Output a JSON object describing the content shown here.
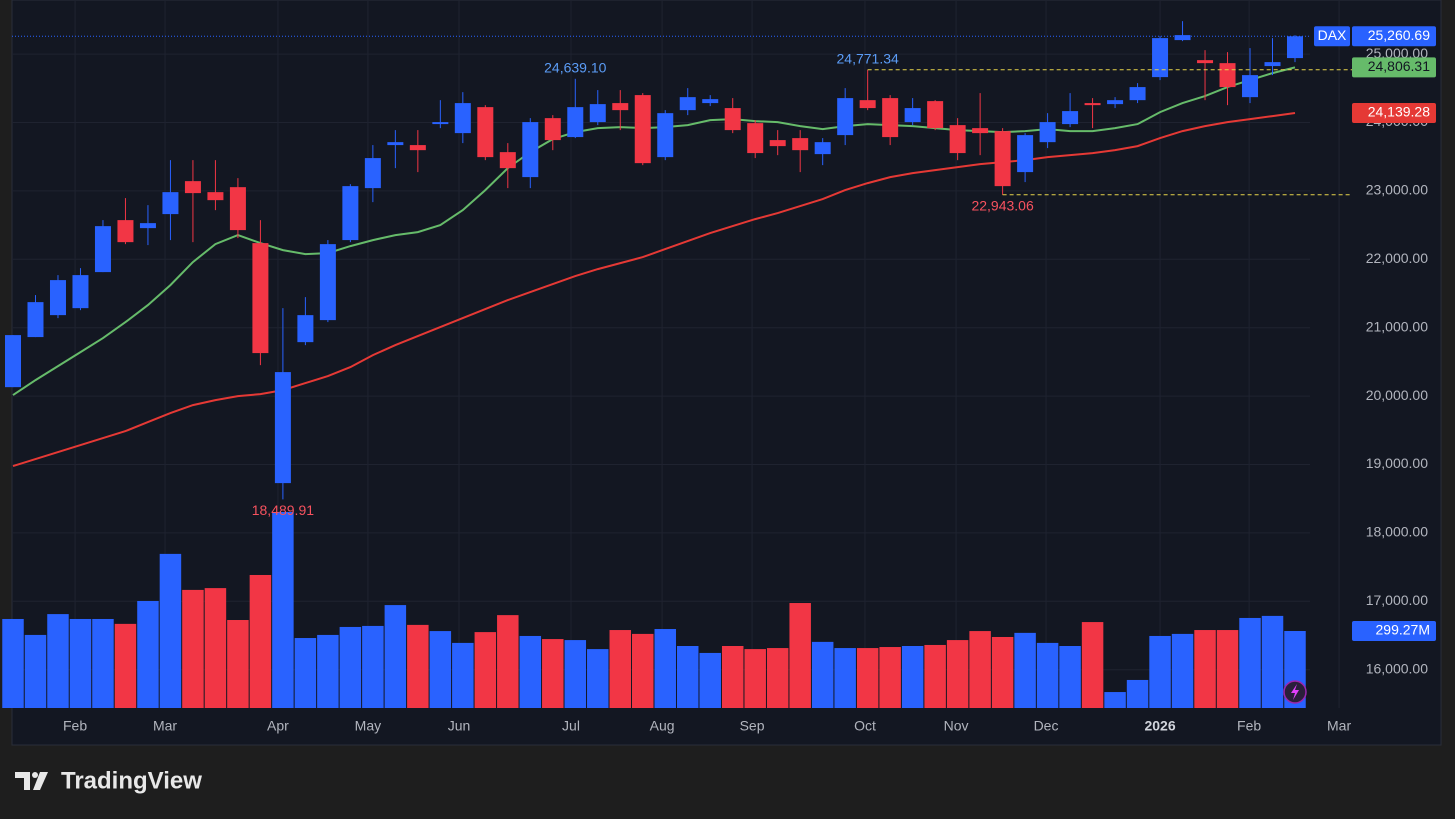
{
  "chart_data": {
    "type": "candlestick",
    "symbol": "DAX",
    "up_color": "#2962ff",
    "down_color": "#f23645",
    "grid": true,
    "xlim": [
      0,
      57
    ],
    "ylim": [
      15440,
      25645
    ],
    "yticks": [
      {
        "value": 16000,
        "label": "16,000.00"
      },
      {
        "value": 17000,
        "label": "17,000.00"
      },
      {
        "value": 18000,
        "label": "18,000.00"
      },
      {
        "value": 19000,
        "label": "19,000.00"
      },
      {
        "value": 20000,
        "label": "20,000.00"
      },
      {
        "value": 21000,
        "label": "21,000.00"
      },
      {
        "value": 22000,
        "label": "22,000.00"
      },
      {
        "value": 23000,
        "label": "23,000.00"
      },
      {
        "value": 24000,
        "label": "24,000.00"
      },
      {
        "value": 25000,
        "label": "25,000.00"
      }
    ],
    "xticks": [
      {
        "value": 2.76,
        "label": "Feb"
      },
      {
        "value": 6.76,
        "label": "Mar"
      },
      {
        "value": 11.78,
        "label": "Apr"
      },
      {
        "value": 15.78,
        "label": "May"
      },
      {
        "value": 19.83,
        "label": "Jun"
      },
      {
        "value": 24.81,
        "label": "Jul"
      },
      {
        "value": 28.86,
        "label": "Aug"
      },
      {
        "value": 32.86,
        "label": "Sep"
      },
      {
        "value": 37.88,
        "label": "Oct"
      },
      {
        "value": 41.93,
        "label": "Nov"
      },
      {
        "value": 45.93,
        "label": "Dec"
      },
      {
        "value": 51.0,
        "label": "2026"
      },
      {
        "value": 54.96,
        "label": "Feb"
      },
      {
        "value": 58.96,
        "label": "Mar"
      }
    ],
    "ohlc": [
      [
        20131,
        20892,
        20131,
        20892
      ],
      [
        20863,
        21477,
        20863,
        21374
      ],
      [
        21184,
        21769,
        21140,
        21696
      ],
      [
        21286,
        21871,
        21257,
        21769
      ],
      [
        21813,
        22573,
        21813,
        22485
      ],
      [
        22573,
        22895,
        22222,
        22251
      ],
      [
        22456,
        22792,
        22208,
        22529
      ],
      [
        22661,
        23450,
        22281,
        22982
      ],
      [
        23143,
        23450,
        22251,
        22968
      ],
      [
        22982,
        23450,
        22719,
        22865
      ],
      [
        23055,
        23187,
        22310,
        22427
      ],
      [
        22237,
        22573,
        20453,
        20629
      ],
      [
        18728,
        21286,
        18489.91,
        20351
      ],
      [
        20789,
        21447,
        20745,
        21184
      ],
      [
        21111,
        22281,
        21082,
        22222
      ],
      [
        22281,
        23099,
        22251,
        23070
      ],
      [
        23041,
        23670,
        22836,
        23480
      ],
      [
        23670,
        23889,
        23333,
        23713
      ],
      [
        23670,
        23889,
        23275,
        23596
      ],
      [
        23977,
        24327,
        23918,
        24006
      ],
      [
        23845,
        24444,
        23699,
        24284
      ],
      [
        24225,
        24254,
        23450,
        23494
      ],
      [
        23567,
        23699,
        23041,
        23333
      ],
      [
        23202,
        24064,
        23041,
        24006
      ],
      [
        24064,
        24108,
        23596,
        23743
      ],
      [
        23787,
        24639.1,
        23772,
        24225
      ],
      [
        24006,
        24474,
        23962,
        24269
      ],
      [
        24284,
        24474,
        23889,
        24181
      ],
      [
        24401,
        24430,
        23377,
        23406
      ],
      [
        23494,
        24181,
        23450,
        24137
      ],
      [
        24181,
        24503,
        24108,
        24371
      ],
      [
        24284,
        24401,
        24240,
        24342
      ],
      [
        24211,
        24357,
        23845,
        23889
      ],
      [
        23991,
        24035,
        23480,
        23553
      ],
      [
        23743,
        23889,
        23523,
        23655
      ],
      [
        23772,
        23889,
        23275,
        23596
      ],
      [
        23538,
        23772,
        23377,
        23713
      ],
      [
        23816,
        24503,
        23670,
        24357
      ],
      [
        24327,
        24771.34,
        24181,
        24211
      ],
      [
        24357,
        24401,
        23670,
        23787
      ],
      [
        24006,
        24357,
        23962,
        24211
      ],
      [
        24313,
        24327,
        23889,
        23918
      ],
      [
        23962,
        24064,
        23450,
        23553
      ],
      [
        23918,
        24430,
        23523,
        23845
      ],
      [
        23874,
        23918,
        22943.06,
        23070
      ],
      [
        23275,
        23845,
        23129,
        23816
      ],
      [
        23713,
        24137,
        23626,
        24006
      ],
      [
        23977,
        24430,
        23933,
        24167
      ],
      [
        24284,
        24357,
        23918,
        24254
      ],
      [
        24269,
        24371,
        24211,
        24327
      ],
      [
        24327,
        24576,
        24284,
        24518
      ],
      [
        24664,
        25263,
        24620,
        25234
      ],
      [
        25205,
        25482,
        25190,
        25278
      ],
      [
        24912,
        25058,
        24327,
        24868
      ],
      [
        24868,
        25029,
        24254,
        24518
      ],
      [
        24371,
        25088,
        24284,
        24693
      ],
      [
        24825,
        25234,
        24693,
        24883
      ],
      [
        24942,
        25278,
        24883,
        25260.69
      ]
    ],
    "last_label": "25,260.69",
    "volume": {
      "ylim": [
        0,
        2713
      ],
      "values": [
        346,
        284,
        365,
        346,
        346,
        327,
        416,
        599,
        459,
        466,
        342,
        517,
        762,
        272,
        284,
        315,
        319,
        400,
        323,
        299,
        253,
        295,
        361,
        280,
        268,
        264,
        229,
        303,
        288,
        307,
        241,
        214,
        241,
        229,
        233,
        408,
        257,
        233,
        233,
        237,
        241,
        245,
        264,
        299,
        276,
        292,
        253,
        241,
        334,
        62,
        109,
        280,
        288,
        303,
        303,
        350,
        358,
        299.27
      ],
      "last_label": "299.27M"
    },
    "moving_averages": [
      {
        "color": "#66bb6a",
        "last_label": "24,806.31",
        "values": [
          20015,
          20234,
          20439,
          20643,
          20848,
          21082,
          21330,
          21623,
          21959,
          22222,
          22354,
          22237,
          22134,
          22076,
          22091,
          22193,
          22281,
          22354,
          22398,
          22500,
          22719,
          23012,
          23333,
          23567,
          23757,
          23860,
          23918,
          23933,
          23918,
          23933,
          23962,
          24035,
          24050,
          24020,
          24006,
          23947,
          23903,
          23947,
          23977,
          23962,
          23947,
          23918,
          23889,
          23874,
          23860,
          23874,
          23903,
          23874,
          23874,
          23918,
          23977,
          24152,
          24284,
          24386,
          24518,
          24620,
          24722,
          24806.31
        ]
      },
      {
        "color": "#e53935",
        "last_label": "24,139.28",
        "values": [
          18977,
          19079,
          19181,
          19284,
          19386,
          19488,
          19620,
          19751,
          19868,
          19941,
          20000,
          20029,
          20088,
          20190,
          20292,
          20424,
          20599,
          20746,
          20877,
          21009,
          21140,
          21272,
          21403,
          21520,
          21637,
          21754,
          21857,
          21944,
          22032,
          22149,
          22266,
          22383,
          22485,
          22588,
          22675,
          22778,
          22880,
          23012,
          23114,
          23202,
          23260,
          23304,
          23348,
          23392,
          23421,
          23450,
          23494,
          23523,
          23553,
          23596,
          23655,
          23772,
          23874,
          23947,
          24006,
          24050,
          24094,
          24139.28
        ]
      }
    ],
    "annotations": [
      {
        "x": 25,
        "y": 24639.1,
        "label": "24,639.10",
        "dashed_line": false
      },
      {
        "x": 12,
        "y": 18489.91,
        "label": "18,489.91",
        "dashed_line": false
      },
      {
        "x": 38,
        "y": 24771.34,
        "label": "24,771.34",
        "dashed_line": true
      },
      {
        "x": 44,
        "y": 22943.06,
        "label": "22,943.06",
        "dashed_line": true
      }
    ]
  },
  "brand": "TradingView"
}
